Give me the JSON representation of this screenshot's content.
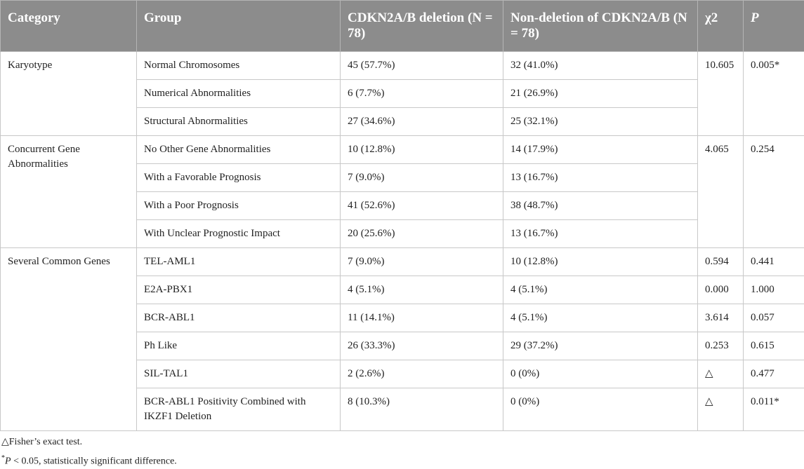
{
  "table": {
    "headers": {
      "category": "Category",
      "group": "Group",
      "deletion": "CDKN2A/B deletion (N = 78)",
      "nondeletion": "Non-deletion of CDKN2A/B (N = 78)",
      "chi2": "χ2",
      "p": "P"
    },
    "categories": {
      "karyotype": "Karyotype",
      "concurrent": "Concurrent Gene Abnormalities",
      "common": "Several Common Genes"
    },
    "rows": [
      {
        "group": "Normal Chromosomes",
        "del": "45 (57.7%)",
        "nondel": "32 (41.0%)"
      },
      {
        "group": "Numerical Abnormalities",
        "del": "6 (7.7%)",
        "nondel": "21 (26.9%)"
      },
      {
        "group": "Structural Abnormalities",
        "del": "27 (34.6%)",
        "nondel": "25 (32.1%)"
      },
      {
        "group": "No Other Gene Abnormalities",
        "del": "10 (12.8%)",
        "nondel": "14 (17.9%)"
      },
      {
        "group": "With a Favorable Prognosis",
        "del": "7 (9.0%)",
        "nondel": "13 (16.7%)"
      },
      {
        "group": "With a Poor Prognosis",
        "del": "41 (52.6%)",
        "nondel": "38 (48.7%)"
      },
      {
        "group": "With Unclear Prognostic Impact",
        "del": "20 (25.6%)",
        "nondel": "13 (16.7%)"
      },
      {
        "group": "TEL-AML1",
        "del": "7 (9.0%)",
        "nondel": "10 (12.8%)",
        "chi2": "0.594",
        "p": "0.441"
      },
      {
        "group": "E2A-PBX1",
        "del": "4 (5.1%)",
        "nondel": "4 (5.1%)",
        "chi2": "0.000",
        "p": "1.000"
      },
      {
        "group": "BCR-ABL1",
        "del": "11 (14.1%)",
        "nondel": "4 (5.1%)",
        "chi2": "3.614",
        "p": "0.057"
      },
      {
        "group": "Ph Like",
        "del": "26 (33.3%)",
        "nondel": "29 (37.2%)",
        "chi2": "0.253",
        "p": "0.615"
      },
      {
        "group": "SIL-TAL1",
        "del": "2 (2.6%)",
        "nondel": "0 (0%)",
        "chi2": "△",
        "p": "0.477"
      },
      {
        "group": "BCR-ABL1 Positivity Combined with IKZF1 Deletion",
        "del": "8 (10.3%)",
        "nondel": "0 (0%)",
        "chi2": "△",
        "p": "0.011*"
      }
    ],
    "karyotype_stats": {
      "chi2": "10.605",
      "p": "0.005*"
    },
    "concurrent_stats": {
      "chi2": "4.065",
      "p": "0.254"
    }
  },
  "notes": {
    "fisher": "△Fisher’s exact test.",
    "sig_prefix": "*",
    "sig_p": "P",
    "sig_text": " < 0.05, statistically significant difference."
  }
}
